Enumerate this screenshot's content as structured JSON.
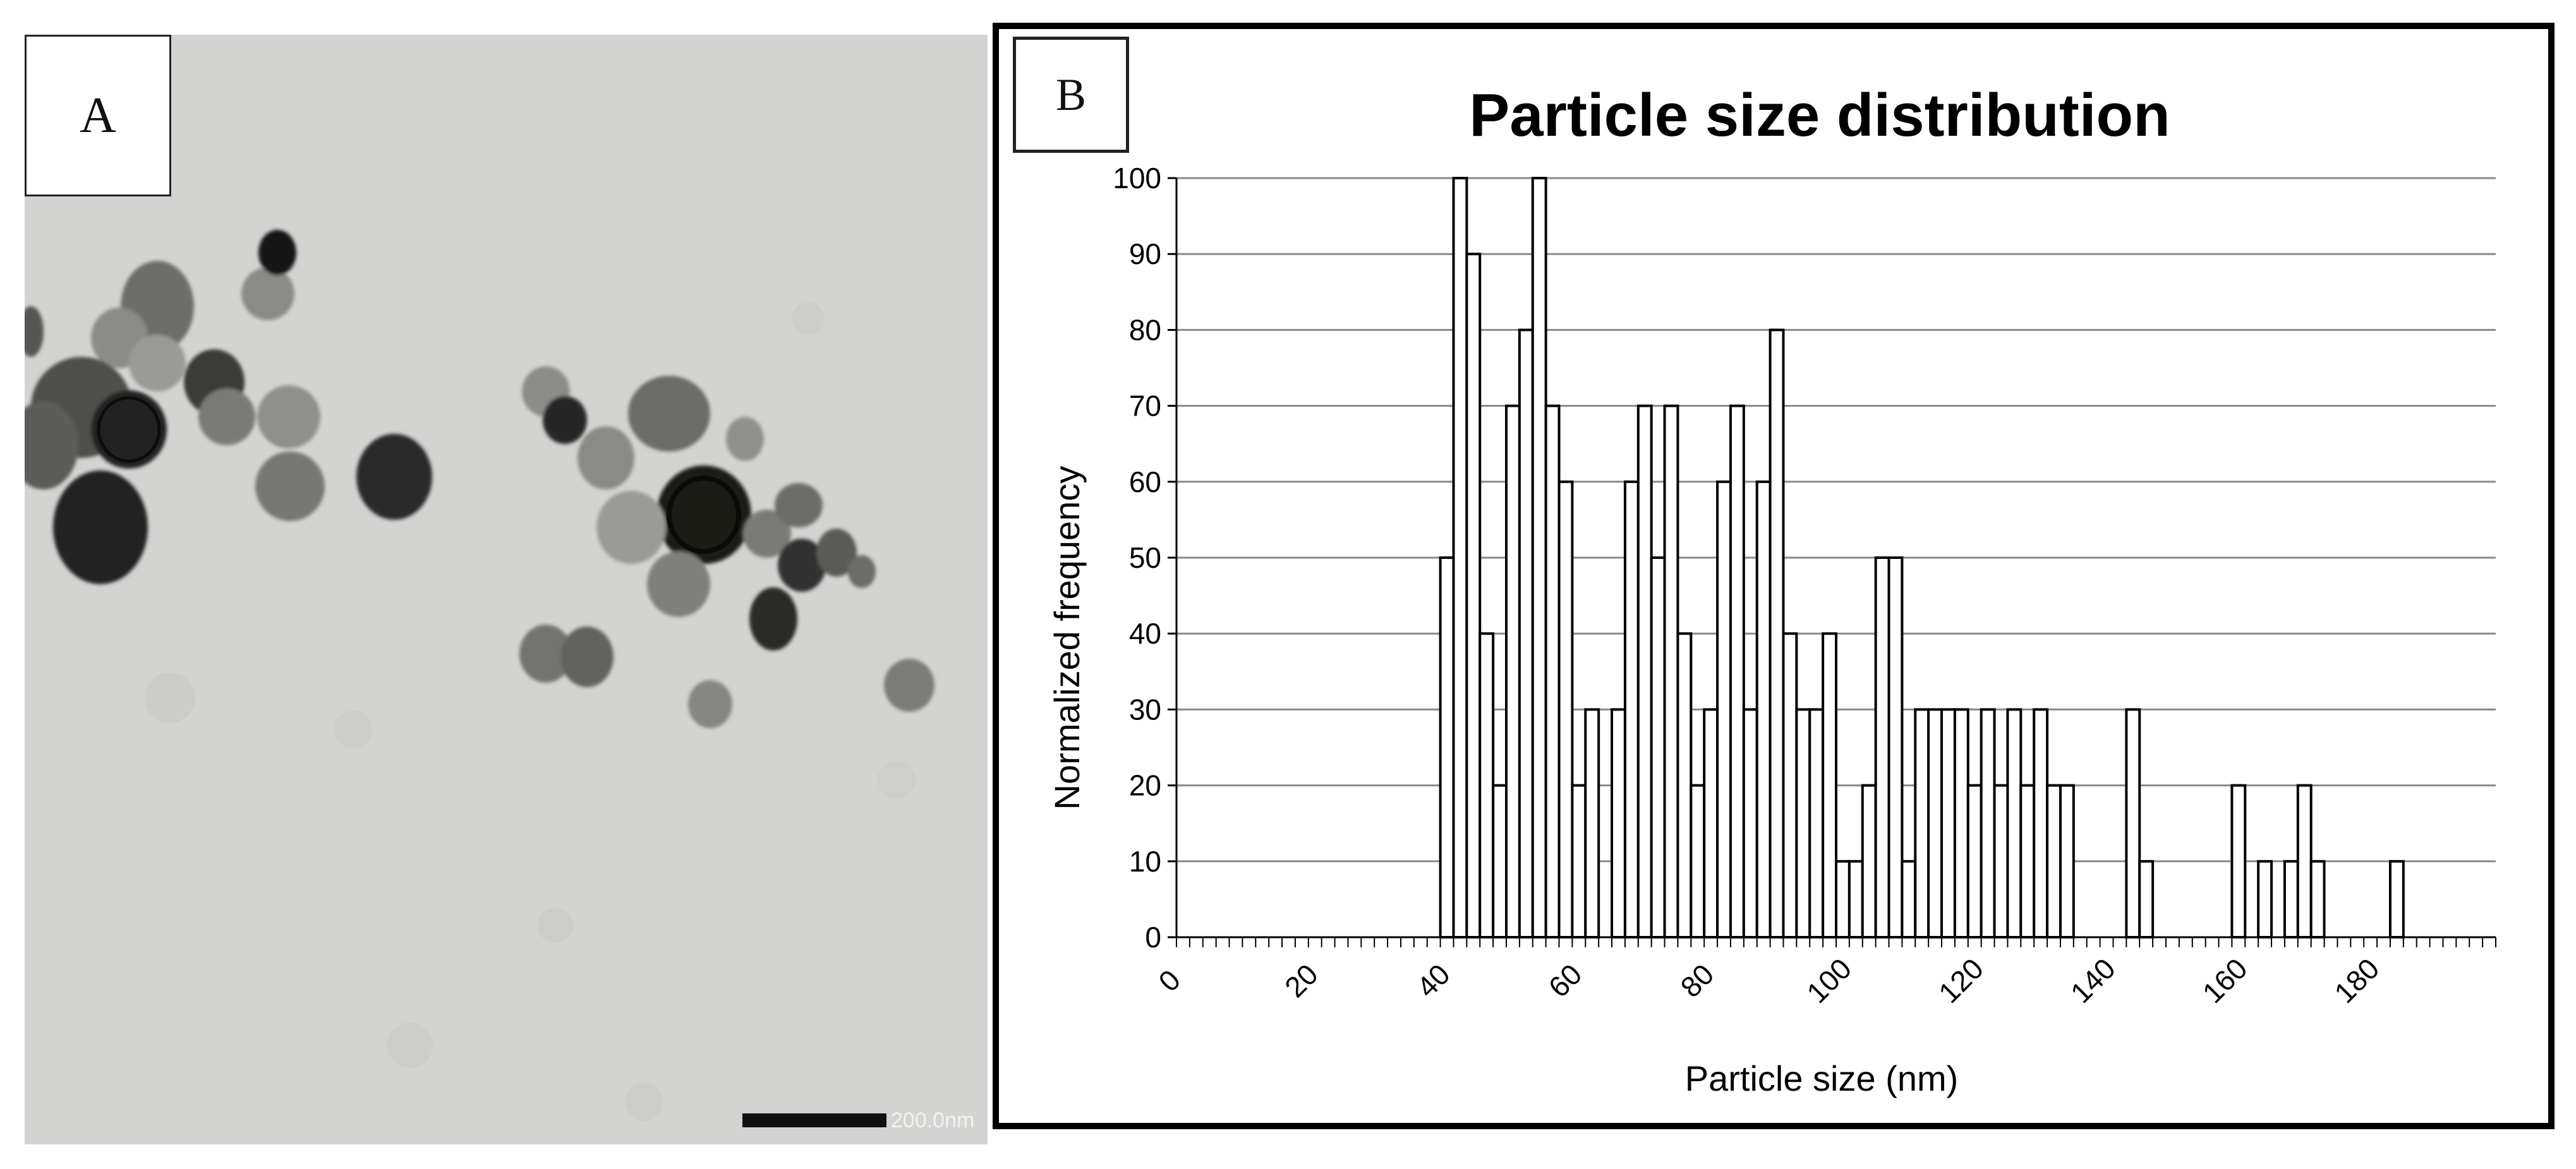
{
  "panel_a": {
    "label": "A",
    "scale_bar_text": "200.0nm"
  },
  "panel_b": {
    "label": "B"
  },
  "chart_data": {
    "type": "bar",
    "title": "Particle size distribution",
    "xlabel": "Particle size (nm)",
    "ylabel": "Normalized frequency",
    "xlim": [
      0,
      200
    ],
    "ylim": [
      0,
      100
    ],
    "bin_width": 2,
    "yticks": [
      0,
      10,
      20,
      30,
      40,
      50,
      60,
      70,
      80,
      90,
      100
    ],
    "xtick_labels": [
      0,
      20,
      40,
      60,
      80,
      100,
      120,
      140,
      160,
      180
    ],
    "grid": "horizontal",
    "bar_color": "#ffffff",
    "bar_edge_color": "#000000",
    "x": [
      40,
      42,
      44,
      46,
      48,
      50,
      52,
      54,
      56,
      58,
      60,
      62,
      66,
      68,
      70,
      72,
      74,
      76,
      78,
      80,
      82,
      84,
      86,
      88,
      90,
      92,
      94,
      96,
      98,
      100,
      102,
      104,
      106,
      108,
      110,
      112,
      114,
      116,
      118,
      120,
      122,
      124,
      126,
      128,
      130,
      132,
      134,
      144,
      146,
      160,
      164,
      168,
      170,
      172,
      184
    ],
    "values": [
      50,
      100,
      90,
      40,
      20,
      70,
      80,
      100,
      70,
      60,
      20,
      30,
      30,
      60,
      70,
      50,
      70,
      40,
      20,
      30,
      60,
      70,
      30,
      60,
      80,
      40,
      30,
      30,
      40,
      10,
      10,
      20,
      50,
      50,
      10,
      30,
      30,
      30,
      30,
      20,
      30,
      20,
      30,
      20,
      30,
      20,
      20,
      30,
      10,
      20,
      10,
      10,
      20,
      10,
      10
    ]
  }
}
